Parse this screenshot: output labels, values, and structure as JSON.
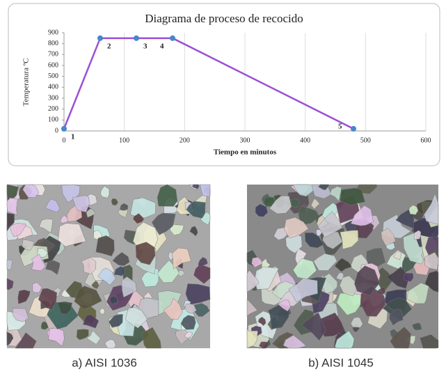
{
  "chart_data": {
    "type": "line",
    "title": "Diagrama de proceso de recocido",
    "x_label": "Tiempo en minutos",
    "y_label": "Temperatura ºC",
    "x": [
      0,
      60,
      120,
      180,
      480
    ],
    "series": [
      {
        "color": "#9b4fd6",
        "marker_color": "#4a86c8",
        "values": [
          20,
          850,
          850,
          850,
          20
        ],
        "point_labels": [
          "1",
          "2",
          "3",
          "4",
          "5"
        ]
      }
    ],
    "xlim": [
      0,
      600
    ],
    "xticks": [
      0,
      100,
      200,
      300,
      400,
      500,
      600
    ],
    "ylim": [
      0,
      900
    ],
    "yticks": [
      0,
      100,
      200,
      300,
      400,
      500,
      600,
      700,
      800,
      900
    ],
    "grid": true
  },
  "captions": [
    "a) AISI 1036",
    "b) AISI 1045"
  ]
}
